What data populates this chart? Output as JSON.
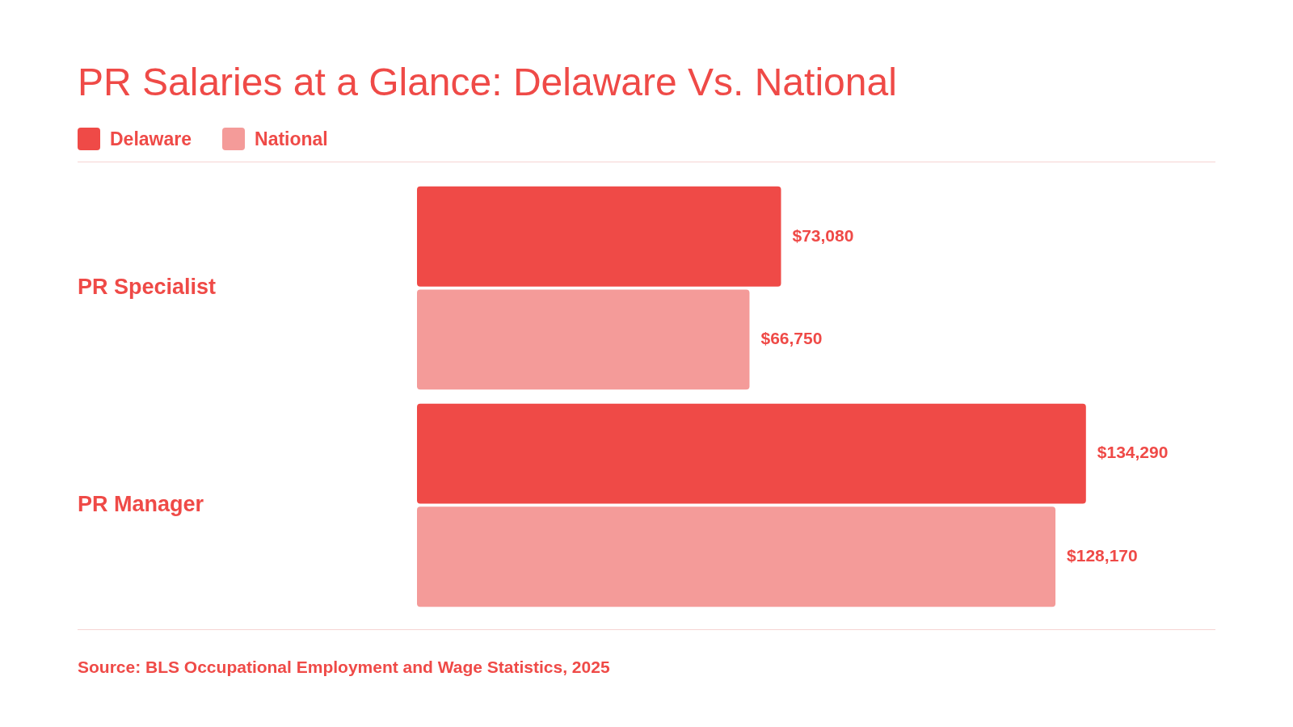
{
  "chart_data": {
    "type": "bar",
    "orientation": "horizontal",
    "title": "PR Salaries at a Glance: Delaware Vs. National",
    "categories": [
      "PR Specialist",
      "PR Manager"
    ],
    "series": [
      {
        "name": "Delaware",
        "color": "#ef4a47",
        "values": [
          73080,
          134290
        ],
        "value_labels": [
          "$73,080",
          "$134,290"
        ]
      },
      {
        "name": "National",
        "color": "#f49b99",
        "values": [
          66750,
          128170
        ],
        "value_labels": [
          "$66,750",
          "$128,170"
        ]
      }
    ],
    "legend": "top left",
    "annotations": [
      "Source: BLS Occupational Employment and Wage Statistics, 2025"
    ]
  }
}
